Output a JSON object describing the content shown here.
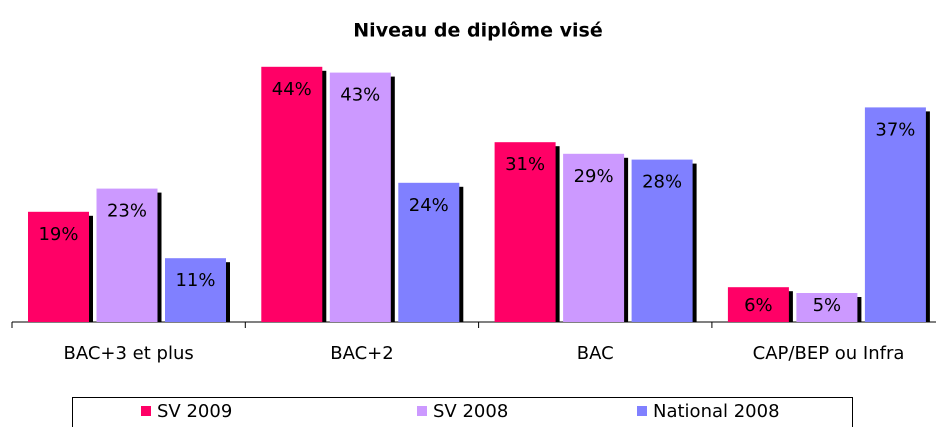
{
  "chart_data": {
    "type": "bar",
    "title": "Niveau de diplôme visé",
    "categories": [
      "BAC+3 et plus",
      "BAC+2",
      "BAC",
      "CAP/BEP ou Infra"
    ],
    "series": [
      {
        "name": "SV 2009",
        "color": "#ff0066",
        "values": [
          19,
          44,
          31,
          6
        ],
        "value_labels": [
          "19%",
          "44%",
          "31%",
          "6%"
        ]
      },
      {
        "name": "SV 2008",
        "color": "#cc99ff",
        "values": [
          23,
          43,
          29,
          5
        ],
        "value_labels": [
          "23%",
          "43%",
          "29%",
          "5%"
        ]
      },
      {
        "name": "National 2008",
        "color": "#8080ff",
        "values": [
          11,
          24,
          28,
          37
        ],
        "value_labels": [
          "11%",
          "24%",
          "28%",
          "37%"
        ]
      }
    ],
    "ylim": [
      0,
      45
    ],
    "legend": "bottom"
  }
}
